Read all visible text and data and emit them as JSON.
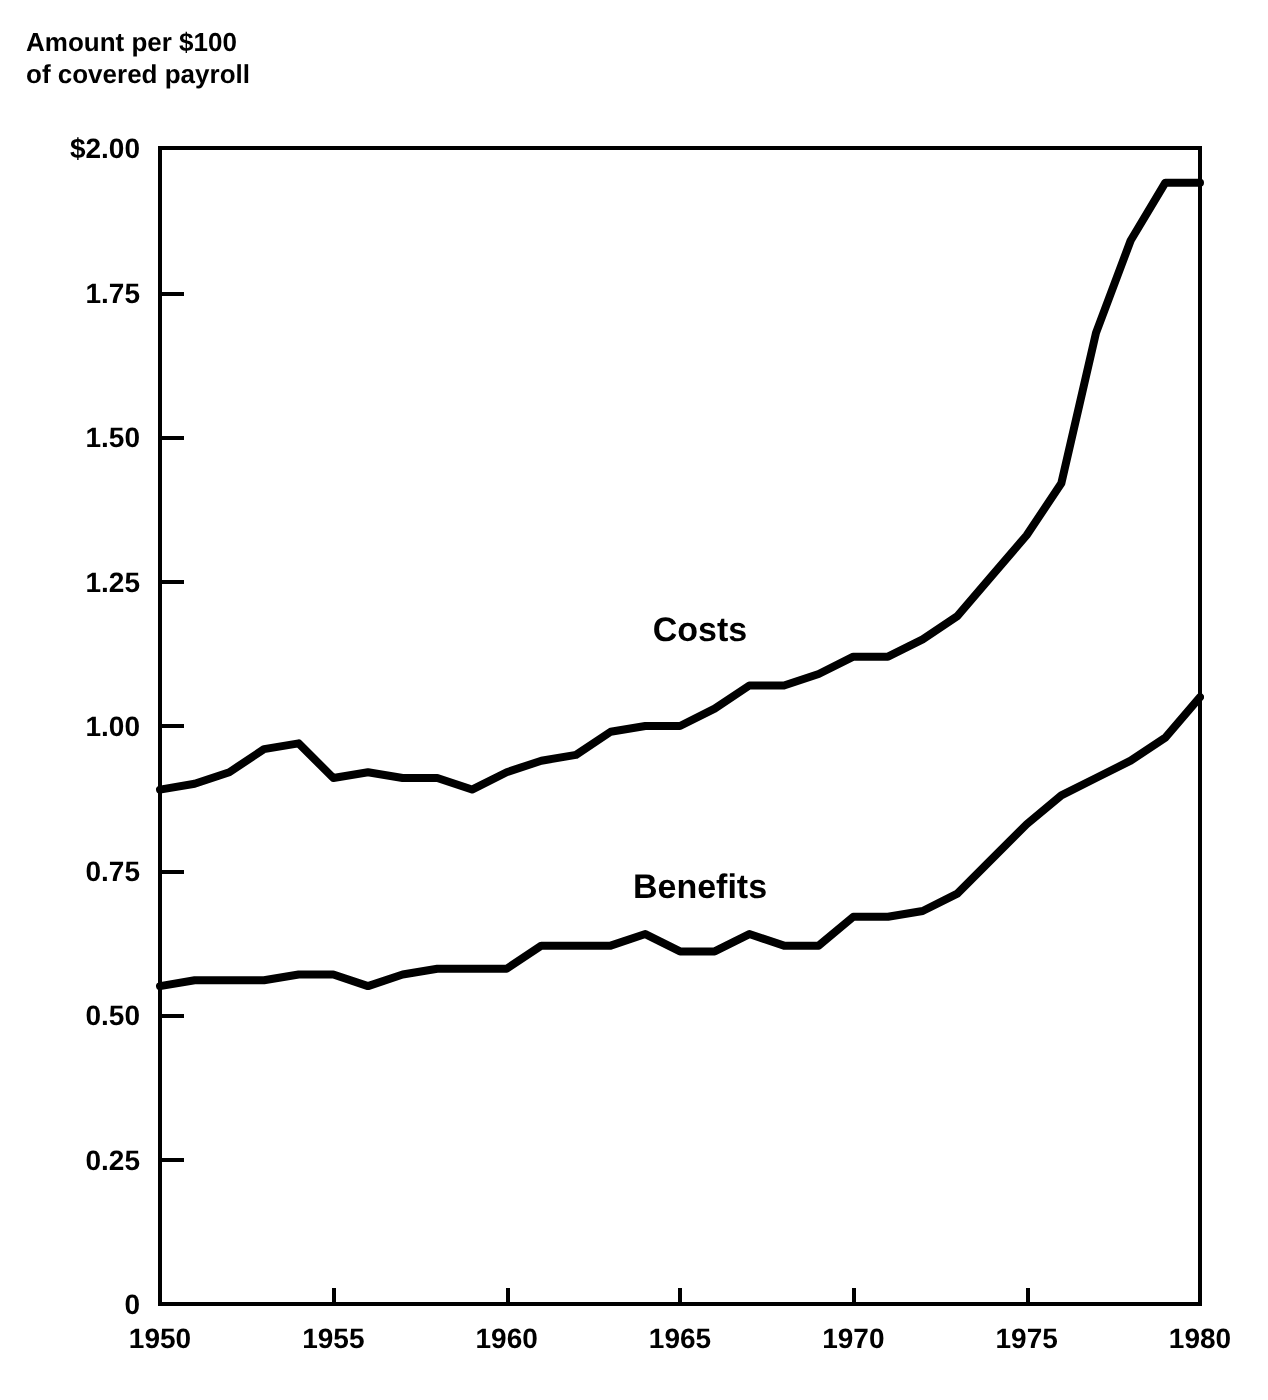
{
  "chart_data": {
    "type": "line",
    "ylabel": "Amount per $100\nof covered payroll",
    "x": [
      1950,
      1951,
      1952,
      1953,
      1954,
      1955,
      1956,
      1957,
      1958,
      1959,
      1960,
      1961,
      1962,
      1963,
      1964,
      1965,
      1966,
      1967,
      1968,
      1969,
      1970,
      1971,
      1972,
      1973,
      1974,
      1975,
      1976,
      1977,
      1978,
      1979,
      1980
    ],
    "series": [
      {
        "name": "Costs",
        "color": "#000000",
        "values": [
          0.89,
          0.9,
          0.92,
          0.96,
          0.97,
          0.91,
          0.92,
          0.91,
          0.91,
          0.89,
          0.92,
          0.94,
          0.95,
          0.99,
          1.0,
          1.0,
          1.03,
          1.07,
          1.07,
          1.09,
          1.12,
          1.12,
          1.15,
          1.19,
          1.26,
          1.33,
          1.42,
          1.68,
          1.84,
          1.94,
          1.94
        ]
      },
      {
        "name": "Benefits",
        "color": "#000000",
        "values": [
          0.55,
          0.56,
          0.56,
          0.56,
          0.57,
          0.57,
          0.55,
          0.57,
          0.58,
          0.58,
          0.58,
          0.62,
          0.62,
          0.62,
          0.64,
          0.61,
          0.61,
          0.64,
          0.62,
          0.62,
          0.67,
          0.67,
          0.68,
          0.71,
          0.77,
          0.83,
          0.88,
          0.91,
          0.94,
          0.98,
          1.05
        ]
      }
    ],
    "xlim": [
      1950,
      1980
    ],
    "xticks": [
      1950,
      1955,
      1960,
      1965,
      1970,
      1975,
      1980
    ],
    "ylim": [
      0,
      2
    ],
    "yticks": [
      {
        "value": 0,
        "label": "0"
      },
      {
        "value": 0.25,
        "label": "0.25"
      },
      {
        "value": 0.5,
        "label": "0.50"
      },
      {
        "value": 0.75,
        "label": "0.75"
      },
      {
        "value": 1,
        "label": "1.00"
      },
      {
        "value": 1.25,
        "label": "1.25"
      },
      {
        "value": 1.5,
        "label": "1.50"
      },
      {
        "value": 1.75,
        "label": "1.75"
      },
      {
        "value": 2,
        "label": "$2.00"
      }
    ],
    "grid": false,
    "legend": false,
    "marker": "none",
    "line_style": "solid"
  }
}
